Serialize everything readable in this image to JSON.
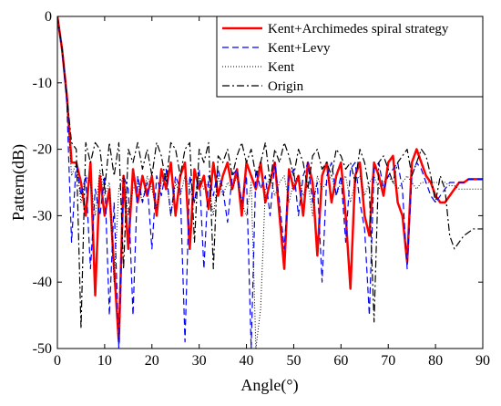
{
  "chart_data": {
    "type": "line",
    "xlabel": "Angle(°)",
    "ylabel": "Pattern(dB)",
    "xlim": [
      0,
      90
    ],
    "ylim": [
      -50,
      0
    ],
    "xticks": [
      0,
      10,
      20,
      30,
      40,
      50,
      60,
      70,
      80,
      90
    ],
    "yticks": [
      0,
      -10,
      -20,
      -30,
      -40,
      -50
    ],
    "legend": "upper right",
    "x": [
      0,
      1,
      2,
      3,
      4,
      5,
      6,
      7,
      8,
      9,
      10,
      11,
      12,
      13,
      14,
      15,
      16,
      17,
      18,
      19,
      20,
      21,
      22,
      23,
      24,
      25,
      26,
      27,
      28,
      29,
      30,
      31,
      32,
      33,
      34,
      35,
      36,
      37,
      38,
      39,
      40,
      41,
      42,
      43,
      44,
      45,
      46,
      47,
      48,
      49,
      50,
      51,
      52,
      53,
      54,
      55,
      56,
      57,
      58,
      59,
      60,
      61,
      62,
      63,
      64,
      65,
      66,
      67,
      68,
      69,
      70,
      71,
      72,
      73,
      74,
      75,
      76,
      77,
      78,
      79,
      80,
      81,
      82,
      83,
      84,
      85,
      86,
      87,
      88,
      89,
      90
    ],
    "series": [
      {
        "name": "Kent+Archimedes spiral strategy",
        "color": "#ff0000",
        "dash": "",
        "width": 2.5,
        "values": [
          0,
          -5,
          -12,
          -22,
          -22,
          -25,
          -30,
          -22,
          -42,
          -24,
          -30,
          -26,
          -38,
          -49,
          -24,
          -35,
          -23,
          -28,
          -24,
          -27,
          -24,
          -30,
          -23,
          -26,
          -22,
          -30,
          -24,
          -22,
          -35,
          -23,
          -26,
          -24,
          -29,
          -22,
          -27,
          -24,
          -22,
          -26,
          -23,
          -30,
          -22,
          -24,
          -26,
          -22,
          -28,
          -25,
          -22,
          -30,
          -38,
          -23,
          -26,
          -24,
          -30,
          -22,
          -25,
          -36,
          -24,
          -22,
          -28,
          -24,
          -22,
          -30,
          -41,
          -24,
          -22,
          -30,
          -33,
          -22,
          -24,
          -27,
          -22,
          -21,
          -28,
          -30,
          -37,
          -22,
          -20,
          -22,
          -24,
          -25,
          -27,
          -28,
          -28,
          -27,
          -26,
          -25,
          -25,
          -24.5,
          -24.5,
          -24.5,
          -24.5
        ]
      },
      {
        "name": "Kent+Levy",
        "color": "#0000ff",
        "dash": "7 4",
        "width": 1.2,
        "values": [
          0,
          -5,
          -13,
          -34,
          -22,
          -27,
          -24,
          -38,
          -26,
          -30,
          -24,
          -45,
          -28,
          -50,
          -24,
          -26,
          -45,
          -24,
          -28,
          -25,
          -35,
          -24,
          -27,
          -23,
          -30,
          -24,
          -26,
          -49,
          -24,
          -28,
          -23,
          -38,
          -24,
          -27,
          -23,
          -26,
          -31,
          -24,
          -23,
          -28,
          -24,
          -50,
          -23,
          -26,
          -24,
          -30,
          -22,
          -28,
          -35,
          -24,
          -23,
          -30,
          -24,
          -22,
          -28,
          -25,
          -40,
          -24,
          -22,
          -27,
          -24,
          -34,
          -23,
          -22,
          -28,
          -32,
          -45,
          -23,
          -22,
          -26,
          -24,
          -23,
          -22,
          -26,
          -38,
          -24,
          -22,
          -23,
          -25,
          -27,
          -28,
          -27,
          -26,
          -25,
          -25,
          -25,
          -25,
          -24.5,
          -24.5,
          -24.5,
          -24.5
        ]
      },
      {
        "name": "Kent",
        "color": "#000000",
        "dash": "1 2",
        "width": 1,
        "values": [
          0,
          -5,
          -12,
          -24,
          -22,
          -28,
          -24,
          -25,
          -30,
          -23,
          -27,
          -25,
          -40,
          -26,
          -24,
          -30,
          -26,
          -25,
          -28,
          -24,
          -26,
          -29,
          -25,
          -24,
          -30,
          -25,
          -27,
          -24,
          -26,
          -28,
          -24,
          -26,
          -25,
          -30,
          -24,
          -27,
          -25,
          -26,
          -24,
          -28,
          -30,
          -25,
          -50,
          -44,
          -26,
          -24,
          -27,
          -25,
          -24,
          -28,
          -25,
          -24,
          -27,
          -25,
          -30,
          -24,
          -26,
          -25,
          -24,
          -27,
          -25,
          -24,
          -28,
          -25,
          -24,
          -27,
          -25,
          -24,
          -26,
          -25,
          -24,
          -25,
          -26,
          -25,
          -24,
          -25,
          -26,
          -25,
          -25,
          -25,
          -25,
          -25,
          -25,
          -25.5,
          -25.5,
          -26,
          -26,
          -26,
          -26,
          -26,
          -26
        ]
      },
      {
        "name": "Origin",
        "color": "#000000",
        "dash": "8 3 2 3",
        "width": 1.2,
        "values": [
          0,
          -5,
          -12,
          -19,
          -20,
          -47,
          -19,
          -22,
          -19,
          -20,
          -26,
          -19,
          -24,
          -19,
          -38,
          -20,
          -22,
          -19,
          -23,
          -20,
          -24,
          -19,
          -21,
          -25,
          -19,
          -20,
          -24,
          -20,
          -19,
          -34,
          -20,
          -22,
          -19,
          -38,
          -21,
          -22,
          -20,
          -24,
          -21,
          -19,
          -22,
          -20,
          -24,
          -22,
          -19,
          -25,
          -20,
          -22,
          -19,
          -21,
          -24,
          -20,
          -22,
          -26,
          -21,
          -20,
          -23,
          -22,
          -24,
          -20,
          -21,
          -23,
          -22,
          -25,
          -20,
          -22,
          -26,
          -46,
          -22,
          -21,
          -23,
          -25,
          -22,
          -21,
          -20,
          -24,
          -22,
          -20,
          -21,
          -24,
          -28,
          -24,
          -26,
          -33,
          -35,
          -34,
          -33,
          -32.5,
          -32,
          -32,
          -32
        ]
      }
    ]
  }
}
